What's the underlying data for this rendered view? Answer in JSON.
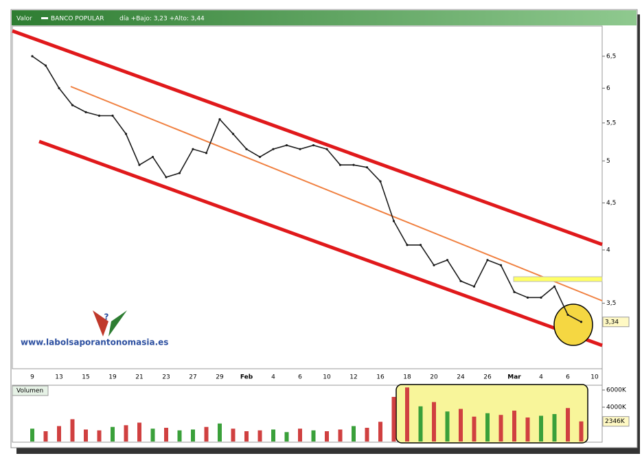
{
  "chart_data": [
    {
      "type": "line",
      "series_label": "Valor",
      "title": "BANCO POPULAR",
      "subtitle": "día +Bajo: 3,23 +Alto: 3,44",
      "annotation": "www.labolsaporantonomasia.es",
      "categories": [
        "9",
        null,
        "13",
        null,
        "15",
        null,
        "19",
        null,
        "21",
        null,
        "23",
        null,
        "27",
        null,
        "29",
        null,
        "Feb",
        null,
        "4",
        null,
        "6",
        null,
        "10",
        null,
        "12",
        null,
        "16",
        null,
        "18",
        null,
        "20",
        null,
        "24",
        null,
        "26",
        null,
        "Mar",
        null,
        "4",
        null,
        "6",
        null,
        "10",
        null
      ],
      "values": [
        6.5,
        6.35,
        6.0,
        5.75,
        5.65,
        5.6,
        5.6,
        5.35,
        4.95,
        5.05,
        4.8,
        4.85,
        5.15,
        5.1,
        5.55,
        5.35,
        5.15,
        5.05,
        5.15,
        5.2,
        5.15,
        5.2,
        5.15,
        4.95,
        4.95,
        4.92,
        4.75,
        4.3,
        4.05,
        4.05,
        3.85,
        3.9,
        3.7,
        3.65,
        3.9,
        3.85,
        3.6,
        3.55,
        3.55,
        3.65,
        3.4,
        3.34,
        null,
        null
      ],
      "value_labels": [
        null,
        null,
        null,
        null,
        null,
        null,
        null,
        null,
        null,
        null,
        null,
        null,
        null,
        null,
        null,
        null,
        null,
        null,
        null,
        null,
        null,
        null,
        null,
        null,
        null,
        null,
        null,
        null,
        null,
        null,
        null,
        null,
        null,
        null,
        null,
        null,
        null,
        null,
        null,
        null,
        null,
        "3,34",
        null,
        null
      ],
      "color": "#1a1a1a",
      "log_scale": true,
      "grid": false,
      "ylim": [
        2.97,
        7.01
      ],
      "yticks": [
        {
          "value": 3.5,
          "label": "3,5"
        },
        4,
        {
          "value": 4.5,
          "label": "4,5"
        },
        5,
        {
          "value": 5.5,
          "label": "5,5"
        },
        6,
        {
          "value": 6.5,
          "label": "6,5"
        }
      ]
    },
    {
      "type": "bar",
      "title": "Volumen",
      "up_color": "#3aa03a",
      "down_color": "#d04040",
      "values": [
        1500000,
        1200000,
        1800000,
        2600000,
        1400000,
        1300000,
        1700000,
        1900000,
        2200000,
        1500000,
        1600000,
        1300000,
        1400000,
        1700000,
        2100000,
        1500000,
        1200000,
        1300000,
        1400000,
        1100000,
        1500000,
        1300000,
        1200000,
        1400000,
        1800000,
        1600000,
        2300000,
        5200000,
        6300000,
        4100000,
        4600000,
        3500000,
        3800000,
        2900000,
        3300000,
        3100000,
        3600000,
        2800000,
        3000000,
        3200000,
        3900000,
        2346000,
        null,
        null
      ],
      "value_labels": [
        null,
        null,
        null,
        null,
        null,
        null,
        null,
        null,
        null,
        null,
        null,
        null,
        null,
        null,
        null,
        null,
        null,
        null,
        null,
        null,
        null,
        null,
        null,
        null,
        null,
        null,
        null,
        null,
        null,
        null,
        null,
        null,
        null,
        null,
        null,
        null,
        null,
        null,
        null,
        null,
        null,
        "2346K",
        null,
        null
      ],
      "ylim": [
        0,
        6560000
      ],
      "yticks": [
        {
          "value": 4000000,
          "label": "4000K"
        },
        {
          "value": 6000000,
          "label": "6000K"
        }
      ]
    }
  ]
}
